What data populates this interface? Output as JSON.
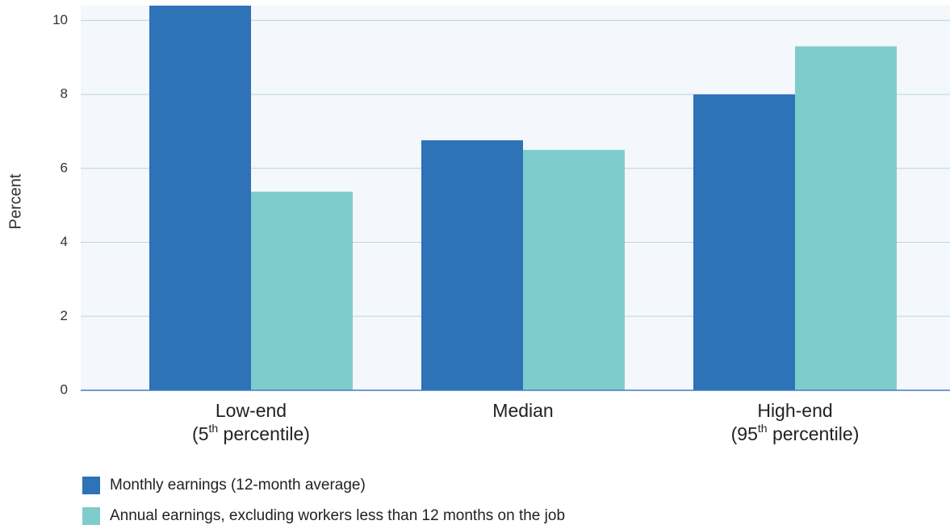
{
  "chart_data": {
    "type": "bar",
    "y_label": "Percent",
    "categories": [
      [
        "Low-end",
        "(5th percentile)"
      ],
      [
        "Median"
      ],
      [
        "High-end",
        "(95th percentile)"
      ]
    ],
    "series": [
      {
        "name": "Monthly earnings (12-month average)",
        "color": "#2e72b8",
        "values": [
          10.4,
          6.76,
          8.0
        ]
      },
      {
        "name": "Annual earnings, excluding workers less than 12 months on the job",
        "color": "#7ecdcc",
        "values": [
          5.37,
          6.5,
          9.3
        ]
      }
    ],
    "ylim": [
      0,
      10.4
    ],
    "yticks": [
      0,
      2,
      4,
      6,
      8,
      10
    ],
    "grid": true
  }
}
